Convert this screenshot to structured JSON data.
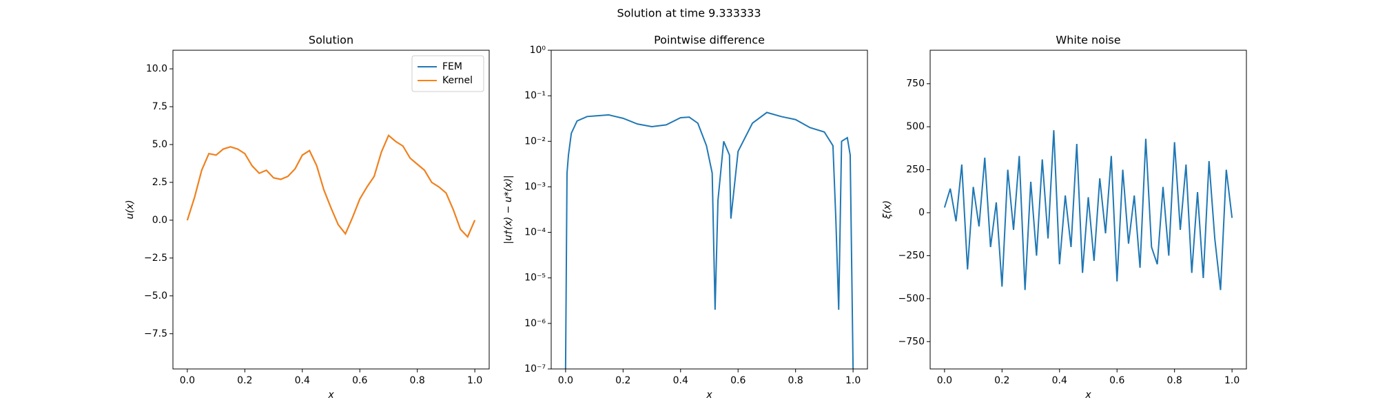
{
  "title": "Solution at time 9.333333",
  "chart_data": [
    {
      "type": "line",
      "title": "Solution",
      "xlabel": "x",
      "ylabel": "u(x)",
      "legend": "upper right",
      "xlim": [
        -0.05,
        1.05
      ],
      "ylim": [
        -9.83,
        11.23
      ],
      "xticks": [
        {
          "value": 0,
          "label": "0.0"
        },
        0.2,
        0.4,
        0.6,
        0.8,
        {
          "value": 1,
          "label": "1.0"
        }
      ],
      "yticks": [
        {
          "value": -7.5,
          "label": "−7.5"
        },
        {
          "value": -5,
          "label": "−5.0"
        },
        {
          "value": -2.5,
          "label": "−2.5"
        },
        {
          "value": 0,
          "label": "0.0"
        },
        2.5,
        {
          "value": 5,
          "label": "5.0"
        },
        7.5,
        {
          "value": 10,
          "label": "10.0"
        }
      ],
      "x": [
        0,
        0.025,
        0.05,
        0.075,
        0.1,
        0.125,
        0.15,
        0.175,
        0.2,
        0.225,
        0.25,
        0.275,
        0.3,
        0.325,
        0.35,
        0.375,
        0.4,
        0.425,
        0.45,
        0.475,
        0.5,
        0.525,
        0.55,
        0.575,
        0.6,
        0.625,
        0.65,
        0.675,
        0.7,
        0.725,
        0.75,
        0.775,
        0.8,
        0.825,
        0.85,
        0.875,
        0.9,
        0.925,
        0.95,
        0.975,
        1.0
      ],
      "series": [
        {
          "name": "FEM",
          "color": "#1f77b4",
          "values": [
            0,
            1.5,
            3.3,
            4.4,
            4.3,
            4.7,
            4.85,
            4.7,
            4.4,
            3.6,
            3.1,
            3.3,
            2.8,
            2.7,
            2.9,
            3.4,
            4.3,
            4.6,
            3.6,
            2.0,
            0.8,
            -0.3,
            -0.9,
            0.2,
            1.4,
            2.2,
            2.9,
            4.5,
            5.6,
            5.2,
            4.9,
            4.1,
            3.7,
            3.3,
            2.5,
            2.2,
            1.8,
            0.7,
            -0.6,
            -1.1,
            0.0
          ]
        },
        {
          "name": "Kernel",
          "color": "#ff7f0e",
          "values": [
            0,
            1.5,
            3.3,
            4.4,
            4.3,
            4.7,
            4.85,
            4.7,
            4.4,
            3.6,
            3.1,
            3.3,
            2.8,
            2.7,
            2.9,
            3.4,
            4.3,
            4.6,
            3.6,
            2.0,
            0.8,
            -0.3,
            -0.9,
            0.2,
            1.4,
            2.2,
            2.9,
            4.5,
            5.6,
            5.2,
            4.9,
            4.1,
            3.7,
            3.3,
            2.5,
            2.2,
            1.8,
            0.7,
            -0.6,
            -1.1,
            0.0
          ]
        }
      ]
    },
    {
      "type": "line",
      "title": "Pointwise difference",
      "xlabel": "x",
      "ylabel": "|u†(x) − u*(x)|",
      "yscale": "log",
      "xlim": [
        -0.05,
        1.05
      ],
      "ylim": [
        1e-07,
        1
      ],
      "xticks": [
        {
          "value": 0,
          "label": "0.0"
        },
        0.2,
        0.4,
        0.6,
        0.8,
        {
          "value": 1,
          "label": "1.0"
        }
      ],
      "yticks": [
        {
          "value": 1e-07,
          "label": "10⁻⁷"
        },
        {
          "value": 1e-06,
          "label": "10⁻⁶"
        },
        {
          "value": 1e-05,
          "label": "10⁻⁵"
        },
        {
          "value": 0.0001,
          "label": "10⁻⁴"
        },
        {
          "value": 0.001,
          "label": "10⁻³"
        },
        {
          "value": 0.01,
          "label": "10⁻²"
        },
        {
          "value": 0.1,
          "label": "10⁻¹"
        },
        {
          "value": 1,
          "label": "10⁰"
        }
      ],
      "x": [
        0,
        0.005,
        0.01,
        0.02,
        0.04,
        0.075,
        0.1,
        0.15,
        0.2,
        0.25,
        0.3,
        0.35,
        0.4,
        0.43,
        0.46,
        0.49,
        0.51,
        0.52,
        0.53,
        0.55,
        0.57,
        0.575,
        0.6,
        0.65,
        0.7,
        0.75,
        0.8,
        0.85,
        0.9,
        0.93,
        0.94,
        0.95,
        0.96,
        0.98,
        0.99,
        1.0
      ],
      "series": [
        {
          "color": "#1f77b4",
          "values": [
            1e-07,
            0.002,
            0.005,
            0.015,
            0.028,
            0.035,
            0.036,
            0.038,
            0.032,
            0.024,
            0.021,
            0.023,
            0.033,
            0.034,
            0.025,
            0.008,
            0.002,
            2e-06,
            0.0005,
            0.01,
            0.005,
            0.0002,
            0.006,
            0.025,
            0.043,
            0.035,
            0.03,
            0.02,
            0.016,
            0.008,
            0.0002,
            2e-06,
            0.01,
            0.012,
            0.005,
            1e-07
          ]
        }
      ]
    },
    {
      "type": "line",
      "title": "White noise",
      "xlabel": "x",
      "ylabel": "ξ(x)",
      "xlim": [
        -0.05,
        1.05
      ],
      "ylim": [
        -909,
        945
      ],
      "xticks": [
        {
          "value": 0,
          "label": "0.0"
        },
        0.2,
        0.4,
        0.6,
        0.8,
        {
          "value": 1,
          "label": "1.0"
        }
      ],
      "yticks": [
        {
          "value": -750,
          "label": "−750"
        },
        {
          "value": -500,
          "label": "−500"
        },
        {
          "value": -250,
          "label": "−250"
        },
        0,
        250,
        500,
        750
      ],
      "x": [
        0,
        0.02,
        0.04,
        0.06,
        0.08,
        0.1,
        0.12,
        0.14,
        0.16,
        0.18,
        0.2,
        0.22,
        0.24,
        0.26,
        0.28,
        0.3,
        0.32,
        0.34,
        0.36,
        0.38,
        0.4,
        0.42,
        0.44,
        0.46,
        0.48,
        0.5,
        0.52,
        0.54,
        0.56,
        0.58,
        0.6,
        0.62,
        0.64,
        0.66,
        0.68,
        0.7,
        0.72,
        0.74,
        0.76,
        0.78,
        0.8,
        0.82,
        0.84,
        0.86,
        0.88,
        0.9,
        0.92,
        0.94,
        0.96,
        0.98,
        1.0
      ],
      "series": [
        {
          "color": "#1f77b4",
          "values": [
            30,
            140,
            -50,
            280,
            -330,
            150,
            -80,
            320,
            -200,
            60,
            -430,
            250,
            -100,
            330,
            -450,
            180,
            -250,
            310,
            -150,
            480,
            -300,
            100,
            -200,
            400,
            -350,
            90,
            -280,
            200,
            -120,
            330,
            -400,
            250,
            -180,
            100,
            -320,
            430,
            -200,
            -300,
            150,
            -250,
            410,
            -100,
            280,
            -350,
            120,
            -380,
            300,
            -150,
            -450,
            250,
            -30
          ]
        }
      ]
    }
  ]
}
